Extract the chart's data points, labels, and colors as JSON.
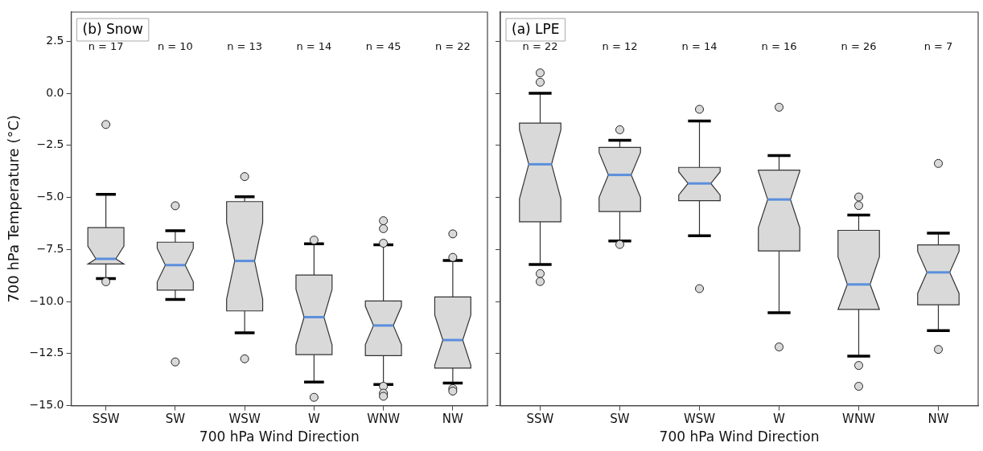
{
  "chart_data": [
    {
      "type": "box",
      "title": "(b) Snow",
      "xlabel": "700 hPa Wind Direction",
      "ylabel": "700 hPa Temperature (°C)",
      "categories": [
        "SSW",
        "SW",
        "WSW",
        "W",
        "WNW",
        "NW"
      ],
      "ylim": [
        -15,
        3.9
      ],
      "yticks": [
        {
          "value": -15,
          "label": "−15.0"
        },
        {
          "value": -12.5,
          "label": "−12.5"
        },
        {
          "value": -10,
          "label": "−10.0"
        },
        {
          "value": -7.5,
          "label": "−7.5"
        },
        {
          "value": -5,
          "label": "−5.0"
        },
        {
          "value": -2.5,
          "label": "−2.5"
        },
        {
          "value": 0,
          "label": "0.0"
        },
        2.5
      ],
      "grid": false,
      "series": [
        {
          "color": "#d9d9d9",
          "boxes": [
            {
              "low": -8.9,
              "q1": -8.2,
              "median": -7.95,
              "q3": -6.45,
              "high": -4.85,
              "outliers": [
                -1.5,
                -9.05
              ]
            },
            {
              "low": -9.9,
              "q1": -9.45,
              "median": -8.25,
              "q3": -7.15,
              "high": -6.6,
              "outliers": [
                -5.4,
                -12.9
              ]
            },
            {
              "low": -11.5,
              "q1": -10.45,
              "median": -8.05,
              "q3": -5.2,
              "high": -4.97,
              "outliers": [
                -4.0,
                -12.75
              ]
            },
            {
              "low": -13.87,
              "q1": -12.55,
              "median": -10.75,
              "q3": -8.73,
              "high": -7.23,
              "outliers": [
                -7.05,
                -14.6
              ]
            },
            {
              "low": -13.98,
              "q1": -12.6,
              "median": -11.15,
              "q3": -9.97,
              "high": -7.28,
              "outliers": [
                -6.12,
                -6.5,
                -7.2,
                -14.07,
                -14.4,
                -14.55
              ]
            },
            {
              "low": -13.92,
              "q1": -13.2,
              "median": -11.85,
              "q3": -9.78,
              "high": -8.03,
              "outliers": [
                -6.75,
                -7.88,
                -14.18,
                -14.3
              ]
            }
          ]
        }
      ],
      "annotations": [
        "n = 17",
        "n = 10",
        "n = 13",
        "n = 14",
        "n = 45",
        "n = 22"
      ]
    },
    {
      "type": "box",
      "title": "(a) LPE",
      "xlabel": "700 hPa Wind Direction",
      "categories": [
        "SSW",
        "SW",
        "WSW",
        "W",
        "WNW",
        "NW"
      ],
      "ylim": [
        -15,
        3.9
      ],
      "yticks": [
        {
          "value": -15,
          "label": null
        },
        {
          "value": -12.5,
          "label": null
        },
        {
          "value": -10,
          "label": null
        },
        {
          "value": -7.5,
          "label": null
        },
        {
          "value": -5,
          "label": null
        },
        {
          "value": -2.5,
          "label": null
        },
        {
          "value": 0,
          "label": null
        },
        {
          "value": 2.5,
          "label": null
        }
      ],
      "tick_labels": "x",
      "grid": false,
      "series": [
        {
          "color": "#d9d9d9",
          "boxes": [
            {
              "low": -8.22,
              "q1": -6.17,
              "median": -3.41,
              "q3": -1.43,
              "high": 0.0,
              "outliers": [
                0.98,
                0.53,
                -8.66,
                -9.04
              ]
            },
            {
              "low": -7.09,
              "q1": -5.68,
              "median": -3.92,
              "q3": -2.6,
              "high": -2.26,
              "outliers": [
                -1.75,
                -7.26
              ]
            },
            {
              "low": -6.84,
              "q1": -5.16,
              "median": -4.33,
              "q3": -3.56,
              "high": -1.33,
              "outliers": [
                -0.77,
                -9.38
              ]
            },
            {
              "low": -10.54,
              "q1": -7.57,
              "median": -5.1,
              "q3": -3.69,
              "high": -2.99,
              "outliers": [
                -0.67,
                -12.18
              ]
            },
            {
              "low": -12.62,
              "q1": -10.38,
              "median": -9.18,
              "q3": -6.58,
              "high": -5.85,
              "outliers": [
                -4.98,
                -5.39,
                -13.07,
                -14.07
              ]
            },
            {
              "low": -11.4,
              "q1": -10.16,
              "median": -8.6,
              "q3": -7.28,
              "high": -6.72,
              "outliers": [
                -3.37,
                -12.3
              ]
            }
          ]
        }
      ],
      "annotations": [
        "n = 22",
        "n = 12",
        "n = 14",
        "n = 16",
        "n = 26",
        "n = 7"
      ]
    }
  ]
}
